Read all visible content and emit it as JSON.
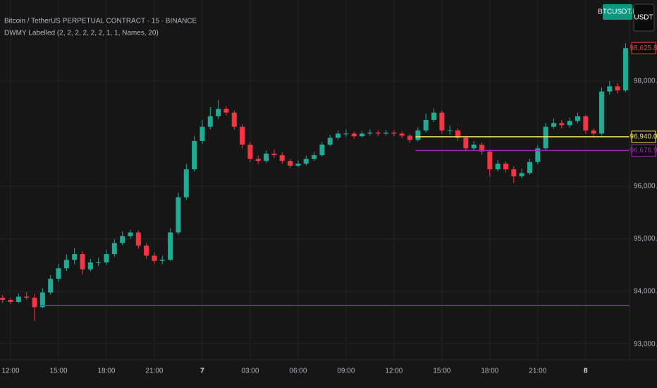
{
  "chart_data": {
    "type": "candlestick",
    "title": "Bitcoin / TetherUS PERPETUAL CONTRACT · 15 · BINANCE",
    "subtitle": "DWMY Labelled (2, 2, 2, 2, 2, 2, 1, 1, Names, 20)",
    "symbol": "BTCUSDT.P",
    "currency": "USDT",
    "up_color": "#22ab94",
    "down_color": "#f23645",
    "grid": true,
    "ylim": [
      92700,
      99540
    ],
    "yticks": [
      {
        "value": 93000,
        "label": "93,000.0"
      },
      {
        "value": 94000,
        "label": "94,000.0"
      },
      {
        "value": 95000,
        "label": "95,000.0"
      },
      {
        "value": 96000,
        "label": "96,000.0"
      },
      {
        "value": 98000,
        "label": "98,000.0"
      }
    ],
    "xticks": [
      {
        "value": 1,
        "label": "12:00"
      },
      {
        "value": 7,
        "label": "15:00"
      },
      {
        "value": 13,
        "label": "18:00"
      },
      {
        "value": 19,
        "label": "21:00"
      },
      {
        "value": 25,
        "label": "7"
      },
      {
        "value": 31,
        "label": "03:00"
      },
      {
        "value": 37,
        "label": "06:00"
      },
      {
        "value": 43,
        "label": "09:00"
      },
      {
        "value": 49,
        "label": "12:00"
      },
      {
        "value": 55,
        "label": "15:00"
      },
      {
        "value": 61,
        "label": "18:00"
      },
      {
        "value": 67,
        "label": "21:00"
      },
      {
        "value": 73,
        "label": "8"
      }
    ],
    "last": {
      "value": 98625.8,
      "label": "98,625.8",
      "color": "#f23645"
    },
    "levels": [
      {
        "value": 96940,
        "label": "96,940.0",
        "color": "#f5e050",
        "start": 52
      },
      {
        "value": 96678.9,
        "label": "96,678.9",
        "color": "#9c27b0",
        "start": 52
      },
      {
        "value": 93730,
        "color": "#9c27b0",
        "start": 5
      }
    ],
    "candles": [
      [
        93880,
        93930,
        93780,
        93840
      ],
      [
        93840,
        93880,
        93760,
        93800
      ],
      [
        93800,
        93960,
        93780,
        93900
      ],
      [
        93900,
        93990,
        93840,
        93880
      ],
      [
        93880,
        93950,
        93440,
        93700
      ],
      [
        93700,
        94060,
        93680,
        93980
      ],
      [
        93980,
        94310,
        93940,
        94240
      ],
      [
        94240,
        94520,
        94180,
        94440
      ],
      [
        94440,
        94700,
        94390,
        94600
      ],
      [
        94600,
        94820,
        94520,
        94710
      ],
      [
        94710,
        94760,
        94320,
        94420
      ],
      [
        94420,
        94620,
        94380,
        94550
      ],
      [
        94550,
        94640,
        94480,
        94550
      ],
      [
        94550,
        94790,
        94500,
        94710
      ],
      [
        94710,
        94990,
        94660,
        94920
      ],
      [
        94920,
        95140,
        94880,
        95050
      ],
      [
        95050,
        95170,
        95000,
        95120
      ],
      [
        95120,
        95160,
        94810,
        94870
      ],
      [
        94870,
        94920,
        94620,
        94680
      ],
      [
        94680,
        94740,
        94520,
        94580
      ],
      [
        94580,
        94680,
        94520,
        94600
      ],
      [
        94600,
        95200,
        94580,
        95120
      ],
      [
        95120,
        95880,
        95080,
        95790
      ],
      [
        95790,
        96420,
        95740,
        96320
      ],
      [
        96320,
        96960,
        96280,
        96860
      ],
      [
        96860,
        97260,
        96800,
        97130
      ],
      [
        97130,
        97500,
        97080,
        97330
      ],
      [
        97330,
        97640,
        97280,
        97470
      ],
      [
        97470,
        97520,
        97340,
        97400
      ],
      [
        97400,
        97440,
        97080,
        97130
      ],
      [
        97130,
        97180,
        96720,
        96790
      ],
      [
        96790,
        96840,
        96460,
        96520
      ],
      [
        96520,
        96580,
        96420,
        96480
      ],
      [
        96480,
        96680,
        96440,
        96620
      ],
      [
        96620,
        96700,
        96540,
        96590
      ],
      [
        96590,
        96640,
        96430,
        96480
      ],
      [
        96480,
        96520,
        96340,
        96390
      ],
      [
        96390,
        96490,
        96360,
        96430
      ],
      [
        96430,
        96580,
        96390,
        96520
      ],
      [
        96520,
        96650,
        96480,
        96590
      ],
      [
        96590,
        96840,
        96560,
        96790
      ],
      [
        96790,
        96980,
        96760,
        96920
      ],
      [
        96920,
        97060,
        96880,
        97000
      ],
      [
        97000,
        97080,
        96940,
        97000
      ],
      [
        97000,
        97040,
        96900,
        96950
      ],
      [
        96950,
        97050,
        96920,
        97000
      ],
      [
        97000,
        97080,
        96960,
        97020
      ],
      [
        97020,
        97060,
        96950,
        97000
      ],
      [
        97000,
        97070,
        96960,
        97020
      ],
      [
        97020,
        97060,
        96950,
        97000
      ],
      [
        97000,
        97040,
        96910,
        96960
      ],
      [
        96960,
        97000,
        96820,
        96880
      ],
      [
        96880,
        97120,
        96850,
        97060
      ],
      [
        97060,
        97380,
        97020,
        97260
      ],
      [
        97260,
        97480,
        97220,
        97400
      ],
      [
        97400,
        97440,
        97000,
        97060
      ],
      [
        97060,
        97150,
        96980,
        97060
      ],
      [
        97060,
        97100,
        96860,
        96920
      ],
      [
        96920,
        96960,
        96660,
        96720
      ],
      [
        96720,
        96860,
        96680,
        96790
      ],
      [
        96790,
        96830,
        96600,
        96660
      ],
      [
        96660,
        96700,
        96180,
        96320
      ],
      [
        96320,
        96500,
        96280,
        96430
      ],
      [
        96430,
        96470,
        96260,
        96320
      ],
      [
        96320,
        96380,
        96060,
        96190
      ],
      [
        96190,
        96330,
        96150,
        96250
      ],
      [
        96250,
        96520,
        96220,
        96460
      ],
      [
        96460,
        96780,
        96420,
        96720
      ],
      [
        96720,
        97200,
        96690,
        97130
      ],
      [
        97130,
        97290,
        97090,
        97200
      ],
      [
        97200,
        97260,
        97100,
        97160
      ],
      [
        97160,
        97300,
        97110,
        97240
      ],
      [
        97240,
        97400,
        97200,
        97330
      ],
      [
        97330,
        97360,
        97000,
        97060
      ],
      [
        97060,
        97100,
        96920,
        97000
      ],
      [
        97000,
        97880,
        96960,
        97800
      ],
      [
        97800,
        98000,
        97740,
        97900
      ],
      [
        97900,
        97960,
        97760,
        97820
      ],
      [
        97820,
        98720,
        97790,
        98625.8
      ]
    ]
  }
}
